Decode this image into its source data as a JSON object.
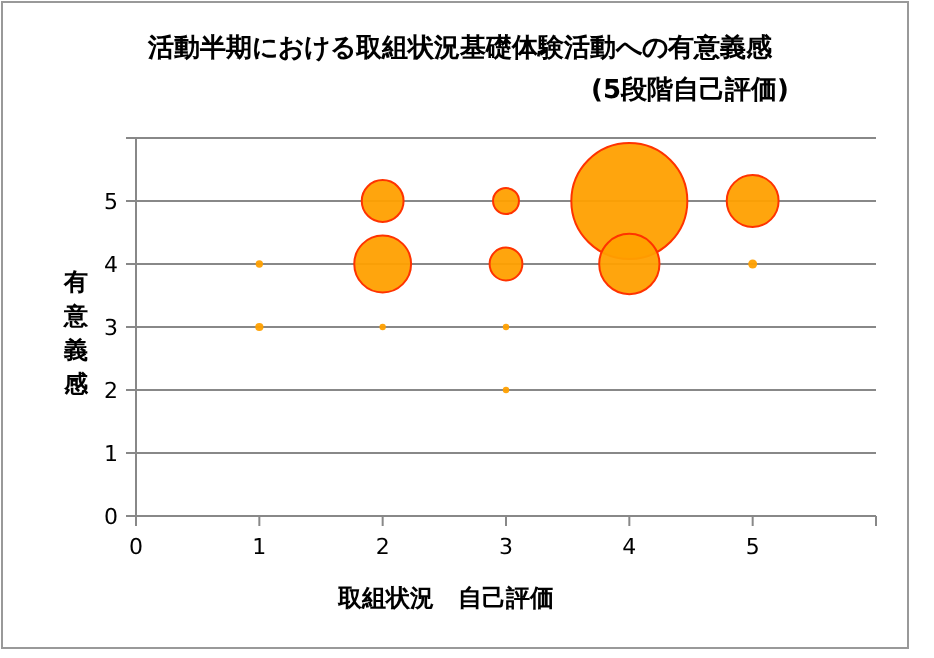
{
  "chart_data": {
    "type": "bubble",
    "title": "活動半期における取組状況基礎体験活動への有意義感",
    "subtitle": "(5段階自己評価)",
    "xlabel": "取組状況　自己評価",
    "ylabel": "有意義感",
    "x": [
      1,
      1,
      2,
      2,
      2,
      3,
      3,
      3,
      3,
      4,
      4,
      5,
      5
    ],
    "values": [
      4,
      3,
      5,
      4,
      3,
      5,
      4,
      3,
      2,
      5,
      4,
      5,
      4
    ],
    "sizes": [
      0.004,
      0.005,
      0.13,
      0.24,
      0.003,
      0.05,
      0.08,
      0.003,
      0.003,
      1,
      0.27,
      0.2,
      0.006
    ],
    "color": "#ffa000",
    "xlim": [
      0,
      6
    ],
    "xticks": [
      0,
      1,
      2,
      3,
      4,
      5,
      {
        "value": 6,
        "label": null
      }
    ],
    "ylim": [
      0,
      6
    ],
    "yticks": [
      0,
      1,
      2,
      3,
      4,
      5,
      {
        "value": 6,
        "label": null
      }
    ],
    "grid": "y"
  }
}
